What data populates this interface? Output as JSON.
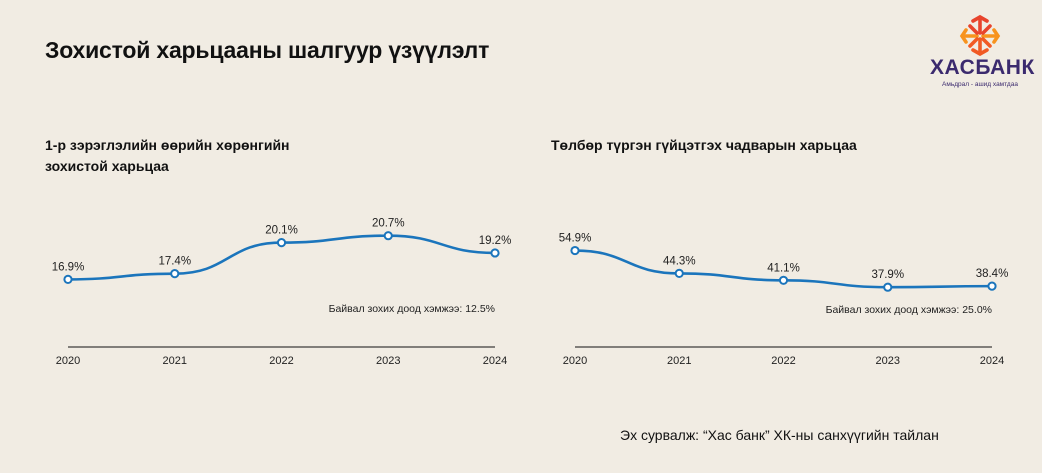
{
  "page": {
    "title": "Зохистой харьцааны шалгуур үзүүлэлт",
    "source": "Эх сурвалж: “Хас банк” ХК-ны санхүүгийн тайлан"
  },
  "logo": {
    "name": "ХАСБАНК",
    "tagline": "Амьдрал - ашид хамтдаа",
    "icon": "khas-bank-flower-logo",
    "colors": [
      "#e8442c",
      "#f7931e",
      "#f15a24",
      "#3b2a6e"
    ]
  },
  "colors": {
    "background": "#f1ece3",
    "line": "#1b75bc",
    "axis": "#111111"
  },
  "chart_data": [
    {
      "type": "line",
      "title_line1": "1-р зэрэглэлийн өөрийн хөрөнгийн",
      "title_line2": "зохистой харьцаа",
      "categories": [
        "2020",
        "2021",
        "2022",
        "2023",
        "2024"
      ],
      "values": [
        16.9,
        17.4,
        20.1,
        20.7,
        19.2
      ],
      "value_labels": [
        "16.9%",
        "17.4%",
        "20.1%",
        "20.7%",
        "19.2%"
      ],
      "unit": "%",
      "ylim": [
        12.5,
        22.5
      ],
      "grid": false,
      "legend": "none",
      "annotation": "Байвал зохих доод хэмжээ: 12.5%"
    },
    {
      "type": "line",
      "title_line1": "Төлбөр түргэн гүйцэтгэх чадварын харьцаа",
      "title_line2": "",
      "categories": [
        "2020",
        "2021",
        "2022",
        "2023",
        "2024"
      ],
      "values": [
        54.9,
        44.3,
        41.1,
        37.9,
        38.4
      ],
      "value_labels": [
        "54.9%",
        "44.3%",
        "41.1%",
        "37.9%",
        "38.4%"
      ],
      "unit": "%",
      "ylim": [
        25.0,
        70.0
      ],
      "grid": false,
      "legend": "none",
      "annotation": "Байвал зохих доод хэмжээ: 25.0%"
    }
  ]
}
